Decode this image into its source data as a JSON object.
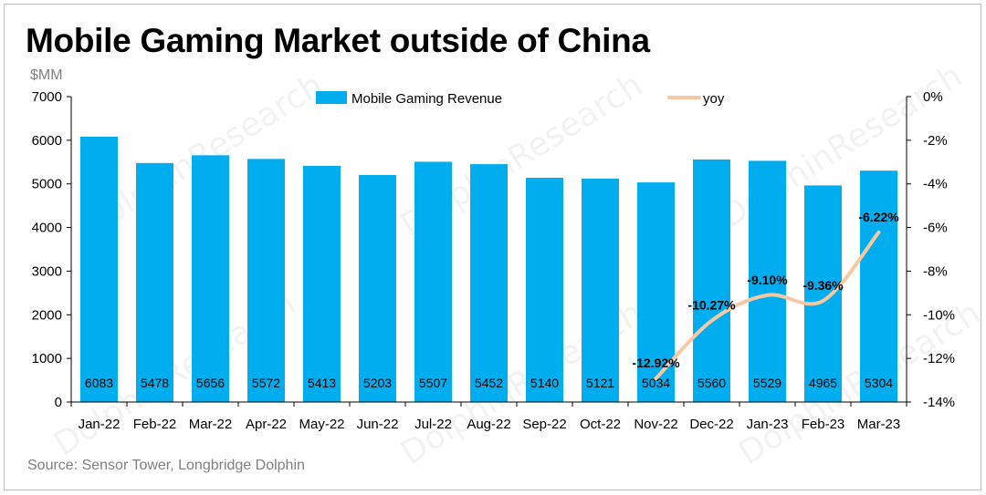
{
  "title": "Mobile Gaming Market outside of China",
  "unit_label": "$MM",
  "source": "Source: Sensor Tower, Longbridge Dolphin",
  "watermark": "DolphinResearch",
  "colors": {
    "bar": "#00AEEF",
    "line": "#F8C9A0",
    "axis": "#000000"
  },
  "chart_data": {
    "type": "bar",
    "categories": [
      "Jan-22",
      "Feb-22",
      "Mar-22",
      "Apr-22",
      "May-22",
      "Jun-22",
      "Jul-22",
      "Aug-22",
      "Sep-22",
      "Oct-22",
      "Nov-22",
      "Dec-22",
      "Jan-23",
      "Feb-23",
      "Mar-23"
    ],
    "series": [
      {
        "name": "Mobile Gaming Revenue",
        "type": "bar",
        "axis": "left",
        "values": [
          6083,
          5478,
          5656,
          5572,
          5413,
          5203,
          5507,
          5452,
          5140,
          5121,
          5034,
          5560,
          5529,
          4965,
          5304
        ],
        "value_labels": [
          "6083",
          "5478",
          "5656",
          "5572",
          "5413",
          "5203",
          "5507",
          "5452",
          "5140",
          "5121",
          "5034",
          "5560",
          "5529",
          "4965",
          "5304"
        ]
      },
      {
        "name": "yoy",
        "type": "line",
        "axis": "right",
        "points": [
          {
            "category": "Nov-22",
            "value": -12.92,
            "label": "-12.92%"
          },
          {
            "category": "Dec-22",
            "value": -10.27,
            "label": "-10.27%"
          },
          {
            "category": "Jan-23",
            "value": -9.1,
            "label": "-9.10%"
          },
          {
            "category": "Feb-23",
            "value": -9.36,
            "label": "-9.36%"
          },
          {
            "category": "Mar-23",
            "value": -6.22,
            "label": "-6.22%"
          }
        ]
      }
    ],
    "y_left": {
      "min": 0,
      "max": 7000,
      "ticks": [
        0,
        1000,
        2000,
        3000,
        4000,
        5000,
        6000,
        7000
      ],
      "tick_labels": [
        "0",
        "1000",
        "2000",
        "3000",
        "4000",
        "5000",
        "6000",
        "7000"
      ]
    },
    "y_right": {
      "min": -14,
      "max": 0,
      "ticks": [
        0,
        -2,
        -4,
        -6,
        -8,
        -10,
        -12,
        -14
      ],
      "tick_labels": [
        "0%",
        "-2%",
        "-4%",
        "-6%",
        "-8%",
        "-10%",
        "-12%",
        "-14%"
      ]
    },
    "legend_placement": "top",
    "grid": false
  }
}
